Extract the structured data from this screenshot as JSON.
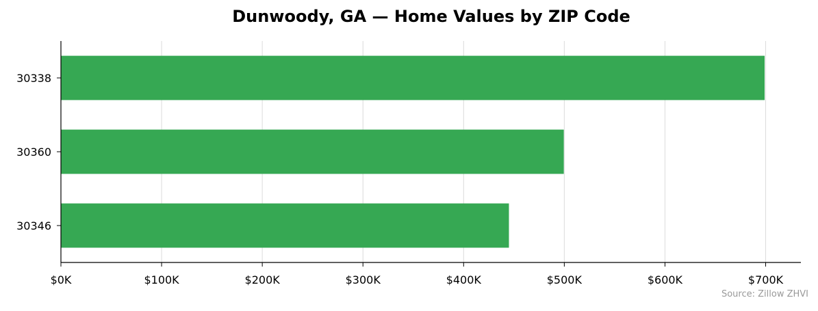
{
  "chart_data": {
    "type": "bar",
    "orientation": "horizontal",
    "title": "Dunwoody, GA — Home Values by ZIP Code",
    "xlabel": "",
    "ylabel": "",
    "categories": [
      "30338",
      "30360",
      "30346"
    ],
    "values": [
      699000,
      499500,
      445000
    ],
    "xlim": [
      0,
      735000
    ],
    "x_ticks": [
      0,
      100000,
      200000,
      300000,
      400000,
      500000,
      600000,
      700000
    ],
    "x_tick_labels": [
      "$0K",
      "$100K",
      "$200K",
      "$300K",
      "$400K",
      "$500K",
      "$600K",
      "$700K"
    ],
    "grid": "vertical",
    "bar_color": "#36a853",
    "source": "Source: Zillow ZHVI"
  }
}
